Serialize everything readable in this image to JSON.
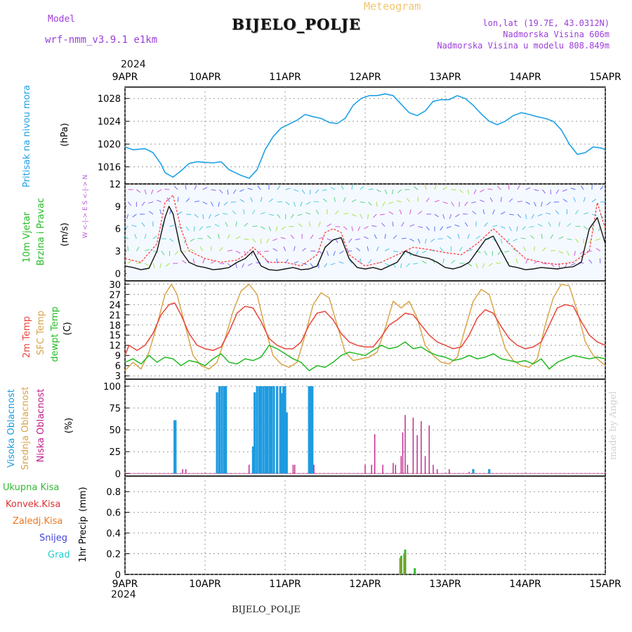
{
  "header": {
    "model_label": "Model",
    "model_name": "wrf-nmm_v3.9.1  e1km",
    "chart_type_label": "Meteogram",
    "station_title": "BIJELO_POLJE",
    "coords": "lon,lat (19.7E, 43.0312N)",
    "elevation": "Nadmorska Visina 606m",
    "model_elevation": "Nadmorska Visina u modelu 808.849m",
    "year_top": "2024",
    "year_bottom": "2024",
    "footer_station": "BIJELO_POLJE",
    "credit": "made by Angel"
  },
  "colors": {
    "pressure": "#1ea1e6",
    "temp_2m": "#e8453c",
    "temp_sfc": "#d9a54a",
    "dewpoint": "#22bb22",
    "cloud_high": "#1e9be0",
    "cloud_mid": "#d9a54a",
    "cloud_low": "#c0208a",
    "precip_total": "#33bb33",
    "precip_conv": "#e03030",
    "precip_frz": "#ee7722",
    "precip_snow": "#4444dd",
    "precip_hail": "#22cccc",
    "wind_speed": "#111111",
    "wind_gust": "#ff3333"
  },
  "chart_data": [
    {
      "type": "line",
      "title": "",
      "ylabel_1": "Pritisak na nivou mora",
      "ylabel_2": "(hPa)",
      "x_tick_labels": [
        "9APR",
        "10APR",
        "11APR",
        "12APR",
        "13APR",
        "14APR",
        "15APR"
      ],
      "yticks": [
        1016,
        1020,
        1024,
        1028
      ],
      "ylim": [
        1013,
        1030
      ],
      "x_unit": "days since 9APR 00Z",
      "series": [
        {
          "name": "",
          "x": [
            0,
            0.1,
            0.25,
            0.35,
            0.45,
            0.5,
            0.6,
            0.7,
            0.8,
            0.9,
            1.0,
            1.1,
            1.2,
            1.3,
            1.45,
            1.55,
            1.65,
            1.75,
            1.85,
            1.95,
            2.05,
            2.15,
            2.25,
            2.35,
            2.45,
            2.55,
            2.65,
            2.75,
            2.85,
            2.95,
            3.05,
            3.15,
            3.25,
            3.35,
            3.45,
            3.55,
            3.65,
            3.75,
            3.85,
            3.95,
            4.05,
            4.15,
            4.25,
            4.35,
            4.45,
            4.55,
            4.65,
            4.75,
            4.85,
            4.95,
            5.05,
            5.15,
            5.25,
            5.35,
            5.45,
            5.55,
            5.65,
            5.75,
            5.85,
            5.95,
            6.0
          ],
          "values": [
            1019.5,
            1019.0,
            1019.2,
            1018.5,
            1016.5,
            1015.0,
            1014.2,
            1015.3,
            1016.6,
            1016.9,
            1016.8,
            1016.7,
            1016.9,
            1015.5,
            1014.5,
            1014.0,
            1015.5,
            1019.0,
            1021.3,
            1022.8,
            1023.5,
            1024.2,
            1025.2,
            1024.8,
            1024.5,
            1023.8,
            1023.6,
            1024.5,
            1026.8,
            1028.0,
            1028.5,
            1028.5,
            1028.8,
            1028.5,
            1027.0,
            1025.5,
            1025.0,
            1025.8,
            1027.5,
            1027.8,
            1027.8,
            1028.5,
            1028.0,
            1026.8,
            1025.3,
            1024.0,
            1023.4,
            1024.0,
            1025.0,
            1025.5,
            1025.2,
            1024.8,
            1024.5,
            1024.0,
            1022.5,
            1020.0,
            1018.2,
            1018.5,
            1019.5,
            1019.3,
            1019.0
          ]
        }
      ]
    },
    {
      "type": "line",
      "title": "",
      "ylabel_1": "10m Vjetar",
      "ylabel_2": "Brzina i Pravac",
      "ylabel_3": "(m/s)",
      "compass_label": "W <-|-> E   S <-|-> N",
      "x_tick_labels": [
        "9APR",
        "10APR",
        "11APR",
        "12APR",
        "13APR",
        "14APR",
        "15APR"
      ],
      "yticks": [
        0,
        3,
        6,
        9,
        12
      ],
      "ylim": [
        -1,
        12
      ],
      "series": [
        {
          "name": "",
          "x": [
            0,
            0.1,
            0.2,
            0.3,
            0.4,
            0.5,
            0.55,
            0.6,
            0.65,
            0.7,
            0.8,
            0.9,
            1.0,
            1.1,
            1.2,
            1.3,
            1.4,
            1.5,
            1.6,
            1.7,
            1.8,
            1.9,
            2.0,
            2.1,
            2.2,
            2.3,
            2.4,
            2.5,
            2.6,
            2.7,
            2.8,
            2.9,
            3.0,
            3.1,
            3.2,
            3.3,
            3.4,
            3.5,
            3.6,
            3.7,
            3.8,
            3.9,
            4.0,
            4.1,
            4.2,
            4.3,
            4.4,
            4.5,
            4.6,
            4.7,
            4.8,
            4.9,
            5.0,
            5.1,
            5.2,
            5.3,
            5.4,
            5.5,
            5.6,
            5.7,
            5.8,
            5.9,
            6.0
          ],
          "values": [
            1.0,
            0.8,
            0.5,
            0.7,
            3.0,
            7.5,
            9.0,
            8.0,
            5.5,
            3.0,
            1.5,
            1.0,
            0.8,
            0.5,
            0.6,
            0.8,
            1.5,
            2.0,
            3.0,
            1.0,
            0.5,
            0.4,
            0.6,
            0.8,
            0.5,
            0.6,
            1.0,
            3.5,
            4.5,
            4.8,
            2.0,
            0.8,
            0.6,
            0.8,
            0.5,
            1.0,
            1.5,
            3.0,
            2.5,
            2.2,
            2.0,
            1.5,
            0.8,
            0.6,
            0.9,
            1.5,
            3.0,
            4.5,
            5.0,
            3.0,
            1.0,
            0.8,
            0.5,
            0.6,
            0.8,
            0.7,
            0.6,
            0.8,
            0.9,
            1.5,
            6.0,
            7.5,
            4.0
          ]
        },
        {
          "name": "",
          "x": [
            0,
            0.2,
            0.4,
            0.5,
            0.6,
            0.7,
            0.8,
            1.0,
            1.2,
            1.4,
            1.5,
            1.6,
            1.8,
            2.0,
            2.2,
            2.4,
            2.5,
            2.6,
            2.7,
            2.8,
            3.0,
            3.2,
            3.4,
            3.6,
            3.8,
            4.0,
            4.2,
            4.4,
            4.6,
            4.8,
            5.0,
            5.2,
            5.4,
            5.6,
            5.8,
            5.9,
            6.0
          ],
          "values": [
            2.0,
            1.5,
            4.0,
            9.5,
            10.5,
            6.0,
            3.0,
            2.0,
            1.5,
            1.8,
            2.5,
            3.5,
            1.5,
            1.5,
            1.0,
            2.5,
            5.5,
            6.0,
            5.5,
            2.5,
            1.0,
            1.5,
            2.5,
            3.5,
            3.2,
            2.8,
            2.5,
            4.0,
            6.0,
            4.0,
            2.0,
            1.5,
            1.2,
            1.5,
            3.0,
            9.5,
            6.0
          ]
        }
      ]
    },
    {
      "type": "line",
      "title": "",
      "ylabel_1": "2m Temp",
      "ylabel_2": "SFC Temp",
      "ylabel_3": "dewpt Temp",
      "ylabel_4": "(C)",
      "x_tick_labels": [
        "9APR",
        "10APR",
        "11APR",
        "12APR",
        "13APR",
        "14APR",
        "15APR"
      ],
      "yticks": [
        3,
        6,
        9,
        12,
        15,
        18,
        21,
        24,
        27,
        30
      ],
      "ylim": [
        2,
        31
      ],
      "series": [
        {
          "name": "2m Temp",
          "x": [
            0,
            0.05,
            0.15,
            0.25,
            0.35,
            0.45,
            0.55,
            0.62,
            0.7,
            0.8,
            0.9,
            1.0,
            1.1,
            1.2,
            1.3,
            1.4,
            1.5,
            1.6,
            1.7,
            1.8,
            1.9,
            2.0,
            2.1,
            2.2,
            2.3,
            2.4,
            2.5,
            2.6,
            2.7,
            2.8,
            2.9,
            3.0,
            3.1,
            3.2,
            3.3,
            3.4,
            3.5,
            3.6,
            3.7,
            3.8,
            3.9,
            4.0,
            4.1,
            4.2,
            4.3,
            4.4,
            4.5,
            4.6,
            4.7,
            4.8,
            4.9,
            5.0,
            5.1,
            5.2,
            5.3,
            5.4,
            5.5,
            5.6,
            5.7,
            5.8,
            5.9,
            6.0
          ],
          "values": [
            9.0,
            12.0,
            10.5,
            12.0,
            15.5,
            21.0,
            24.0,
            24.5,
            21.0,
            15.5,
            12.0,
            11.0,
            10.5,
            11.5,
            16.0,
            21.5,
            23.5,
            23.0,
            19.0,
            14.0,
            12.0,
            11.0,
            11.0,
            13.0,
            18.0,
            21.5,
            22.0,
            19.5,
            15.5,
            13.0,
            12.0,
            11.5,
            11.5,
            14.5,
            18.0,
            19.5,
            21.5,
            21.0,
            18.0,
            15.0,
            13.0,
            12.0,
            11.0,
            11.5,
            15.0,
            20.0,
            22.5,
            21.5,
            17.5,
            14.0,
            12.0,
            11.0,
            11.5,
            13.0,
            18.0,
            23.0,
            24.0,
            23.5,
            19.0,
            15.0,
            13.0,
            12.0
          ]
        },
        {
          "name": "SFC Temp",
          "x": [
            0,
            0.1,
            0.2,
            0.3,
            0.4,
            0.5,
            0.58,
            0.65,
            0.75,
            0.85,
            0.95,
            1.05,
            1.15,
            1.25,
            1.35,
            1.45,
            1.55,
            1.65,
            1.75,
            1.85,
            1.95,
            2.05,
            2.15,
            2.25,
            2.35,
            2.45,
            2.55,
            2.65,
            2.75,
            2.85,
            2.95,
            3.05,
            3.15,
            3.25,
            3.35,
            3.45,
            3.55,
            3.65,
            3.75,
            3.85,
            3.95,
            4.05,
            4.15,
            4.25,
            4.35,
            4.45,
            4.55,
            4.65,
            4.75,
            4.85,
            4.95,
            5.05,
            5.15,
            5.25,
            5.35,
            5.45,
            5.55,
            5.65,
            5.75,
            5.85,
            5.95,
            6.0
          ],
          "values": [
            4.5,
            7.0,
            5.0,
            10.0,
            18.0,
            27.0,
            30.0,
            27.0,
            18.0,
            9.0,
            6.0,
            5.0,
            7.0,
            14.0,
            22.0,
            28.0,
            30.0,
            27.0,
            17.0,
            9.0,
            6.5,
            5.5,
            7.0,
            15.0,
            24.0,
            27.5,
            26.0,
            18.0,
            10.0,
            7.5,
            8.0,
            8.5,
            10.0,
            17.0,
            25.0,
            23.0,
            25.0,
            20.0,
            12.0,
            9.0,
            7.0,
            6.5,
            8.5,
            17.0,
            25.0,
            28.5,
            27.0,
            19.0,
            11.0,
            7.5,
            6.0,
            5.5,
            8.0,
            18.0,
            26.0,
            30.0,
            29.5,
            22.0,
            13.0,
            9.0,
            7.0,
            6.0
          ]
        },
        {
          "name": "dewpt Temp",
          "x": [
            0,
            0.1,
            0.2,
            0.3,
            0.4,
            0.5,
            0.6,
            0.7,
            0.8,
            0.9,
            1.0,
            1.1,
            1.2,
            1.3,
            1.4,
            1.5,
            1.6,
            1.7,
            1.8,
            1.9,
            2.0,
            2.1,
            2.2,
            2.3,
            2.4,
            2.5,
            2.6,
            2.7,
            2.8,
            2.9,
            3.0,
            3.1,
            3.2,
            3.3,
            3.4,
            3.5,
            3.6,
            3.7,
            3.8,
            3.9,
            4.0,
            4.1,
            4.2,
            4.3,
            4.4,
            4.5,
            4.6,
            4.7,
            4.8,
            4.9,
            5.0,
            5.1,
            5.2,
            5.3,
            5.4,
            5.5,
            5.6,
            5.7,
            5.8,
            5.9,
            6.0
          ],
          "values": [
            7.0,
            8.0,
            6.5,
            9.0,
            7.0,
            8.5,
            8.0,
            6.0,
            7.5,
            7.0,
            6.0,
            8.0,
            9.5,
            7.0,
            6.5,
            8.0,
            7.5,
            8.5,
            12.0,
            11.0,
            9.5,
            8.0,
            7.0,
            4.5,
            6.0,
            5.5,
            7.0,
            9.0,
            10.0,
            9.5,
            9.0,
            10.5,
            12.0,
            11.0,
            11.5,
            13.0,
            11.0,
            11.5,
            10.0,
            9.0,
            8.5,
            7.5,
            8.0,
            9.0,
            8.0,
            8.5,
            9.5,
            8.0,
            7.5,
            7.0,
            7.5,
            6.5,
            8.0,
            5.0,
            7.0,
            8.0,
            9.0,
            8.5,
            8.0,
            8.5,
            8.0
          ]
        }
      ]
    },
    {
      "type": "bar",
      "title": "",
      "ylabel_1": "Visoka Oblacnost",
      "ylabel_2": "Srednja Oblacnost",
      "ylabel_3": "Niska Oblacnost",
      "ylabel_4": "(%)",
      "x_tick_labels": [
        "9APR",
        "10APR",
        "11APR",
        "12APR",
        "13APR",
        "14APR",
        "15APR"
      ],
      "yticks": [
        0,
        25,
        50,
        75,
        100
      ],
      "ylim": [
        -3,
        108
      ],
      "series": [
        {
          "name": "Visoka Oblacnost",
          "x": [
            0.62,
            0.63,
            1.15,
            1.18,
            1.21,
            1.24,
            1.26,
            1.6,
            1.62,
            1.65,
            1.68,
            1.7,
            1.73,
            1.76,
            1.78,
            1.81,
            1.83,
            1.86,
            1.9,
            1.94,
            1.96,
            1.98,
            2.0,
            2.02,
            2.3,
            2.32,
            2.34,
            4.35,
            4.55
          ],
          "values": [
            61,
            61,
            93,
            100,
            100,
            100,
            100,
            31,
            93,
            100,
            100,
            100,
            100,
            100,
            100,
            100,
            100,
            100,
            100,
            100,
            92,
            100,
            100,
            70,
            100,
            100,
            100,
            5,
            5
          ]
        },
        {
          "name": "Niska Oblacnost",
          "x": [
            0.72,
            0.76,
            1.55,
            2.1,
            2.12,
            2.36,
            3.0,
            3.08,
            3.12,
            3.22,
            3.35,
            3.38,
            3.45,
            3.47,
            3.5,
            3.53,
            3.6,
            3.65,
            3.7,
            3.75,
            3.8,
            3.85,
            3.9,
            4.05,
            4.3
          ],
          "values": [
            5,
            5,
            10,
            10,
            10,
            10,
            10,
            10,
            45,
            10,
            12,
            10,
            20,
            47,
            67,
            10,
            64,
            44,
            60,
            20,
            55,
            10,
            5,
            5,
            2
          ]
        }
      ]
    },
    {
      "type": "bar",
      "title": "",
      "ylabel_1": "1hr Precip",
      "ylabel_2": "(mm)",
      "x_tick_labels": [
        "9APR",
        "10APR",
        "11APR",
        "12APR",
        "13APR",
        "14APR",
        "15APR"
      ],
      "yticks": [
        0,
        0.2,
        0.4,
        0.6,
        0.8
      ],
      "ylim": [
        0,
        0.95
      ],
      "legend_items": [
        "Ukupna  Kisa",
        "Konvek.Kisa",
        "Zaledj.Kisa",
        "Snijeg",
        "Grad"
      ],
      "series": [
        {
          "name": "Ukupna  Kisa",
          "x": [
            3.45,
            3.5,
            3.62
          ],
          "values": [
            0.18,
            0.24,
            0.06
          ]
        },
        {
          "name": "Konvek.Kisa",
          "x": [
            3.45,
            3.5
          ],
          "values": [
            0.16,
            0.2
          ]
        }
      ]
    }
  ]
}
